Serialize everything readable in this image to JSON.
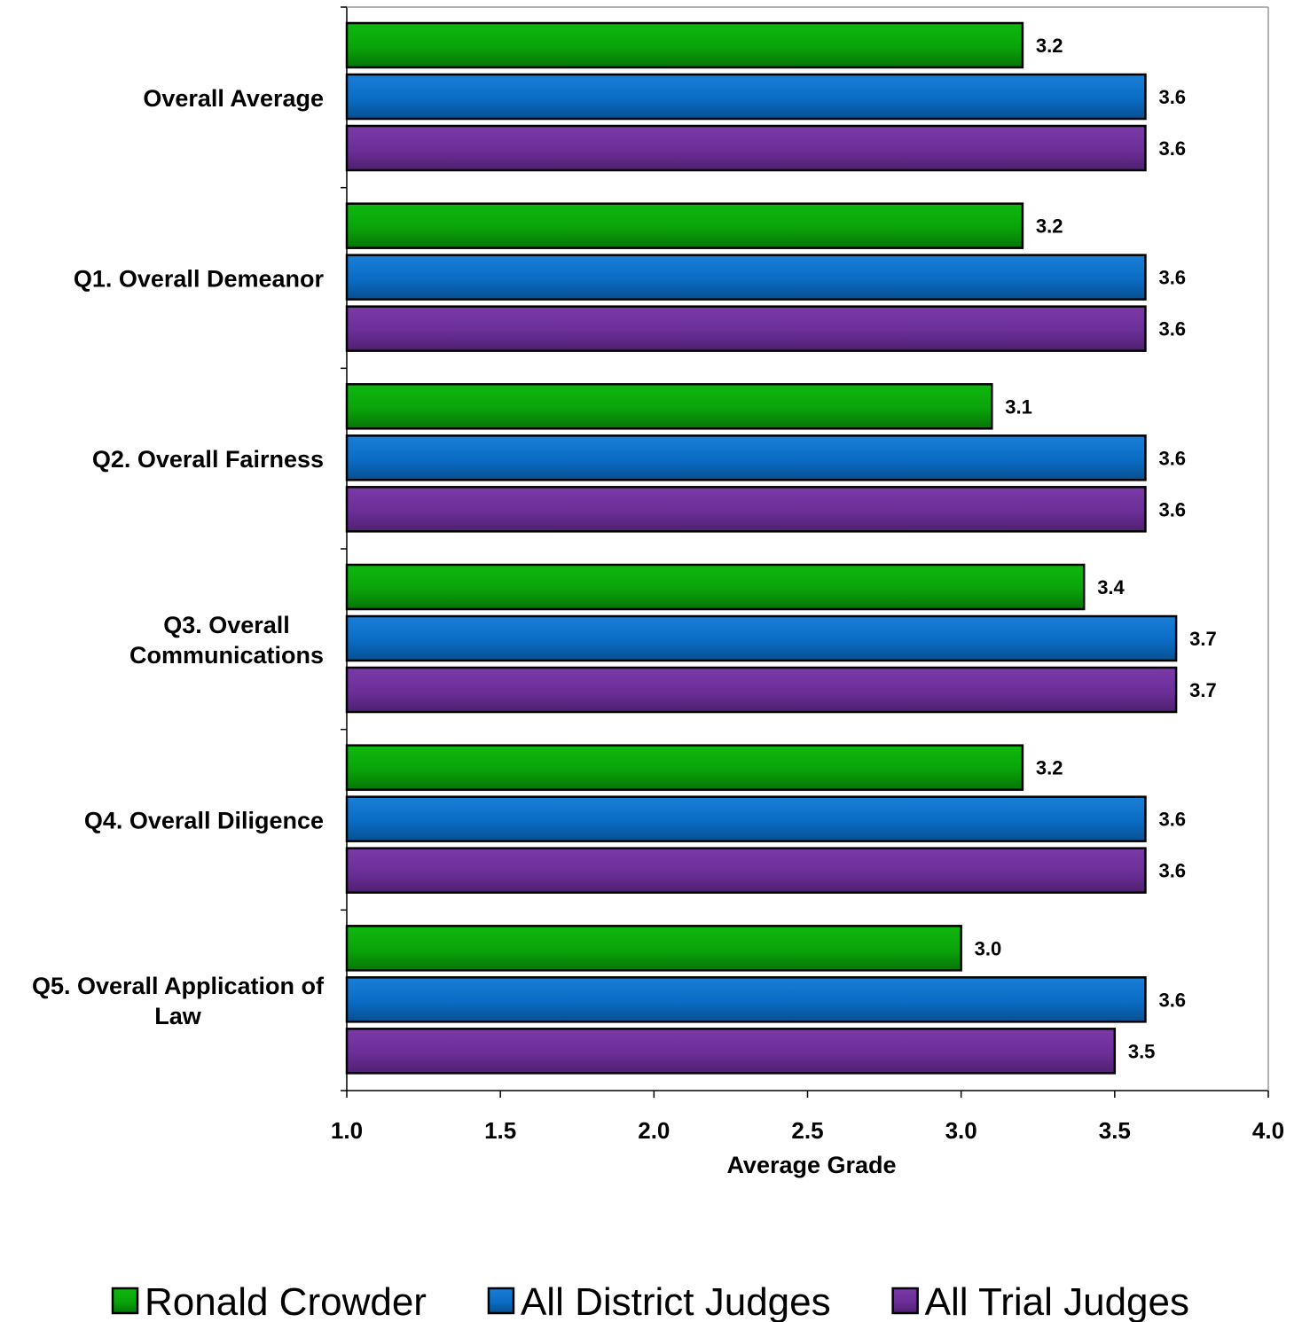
{
  "chart_data": {
    "type": "bar",
    "orientation": "horizontal",
    "categories": [
      "Overall Average",
      "Q1. Overall Demeanor",
      "Q2. Overall Fairness",
      "Q3. Overall Communications",
      "Q4. Overall Diligence",
      "Q5. Overall Application of Law"
    ],
    "series": [
      {
        "name": "Ronald Crowder",
        "color": "#0aa30a",
        "values": [
          3.2,
          3.2,
          3.1,
          3.4,
          3.2,
          3.0
        ]
      },
      {
        "name": "All District Judges",
        "color": "#0a6cc4",
        "values": [
          3.6,
          3.6,
          3.6,
          3.7,
          3.6,
          3.6
        ]
      },
      {
        "name": "All Trial Judges",
        "color": "#6b2f98",
        "values": [
          3.6,
          3.6,
          3.6,
          3.7,
          3.6,
          3.5
        ]
      }
    ],
    "value_labels": [
      [
        "3.2",
        "3.2",
        "3.1",
        "3.4",
        "3.2",
        "3.0"
      ],
      [
        "3.6",
        "3.6",
        "3.6",
        "3.7",
        "3.6",
        "3.6"
      ],
      [
        "3.6",
        "3.6",
        "3.6",
        "3.7",
        "3.6",
        "3.5"
      ]
    ],
    "xlim": [
      1.0,
      4.0
    ],
    "xticks": [
      "1.0",
      "1.5",
      "2.0",
      "2.5",
      "3.0",
      "3.5",
      "4.0"
    ],
    "xlabel": "Average Grade",
    "ylabel": "",
    "title": "",
    "grid": false,
    "legend": "bottom"
  }
}
